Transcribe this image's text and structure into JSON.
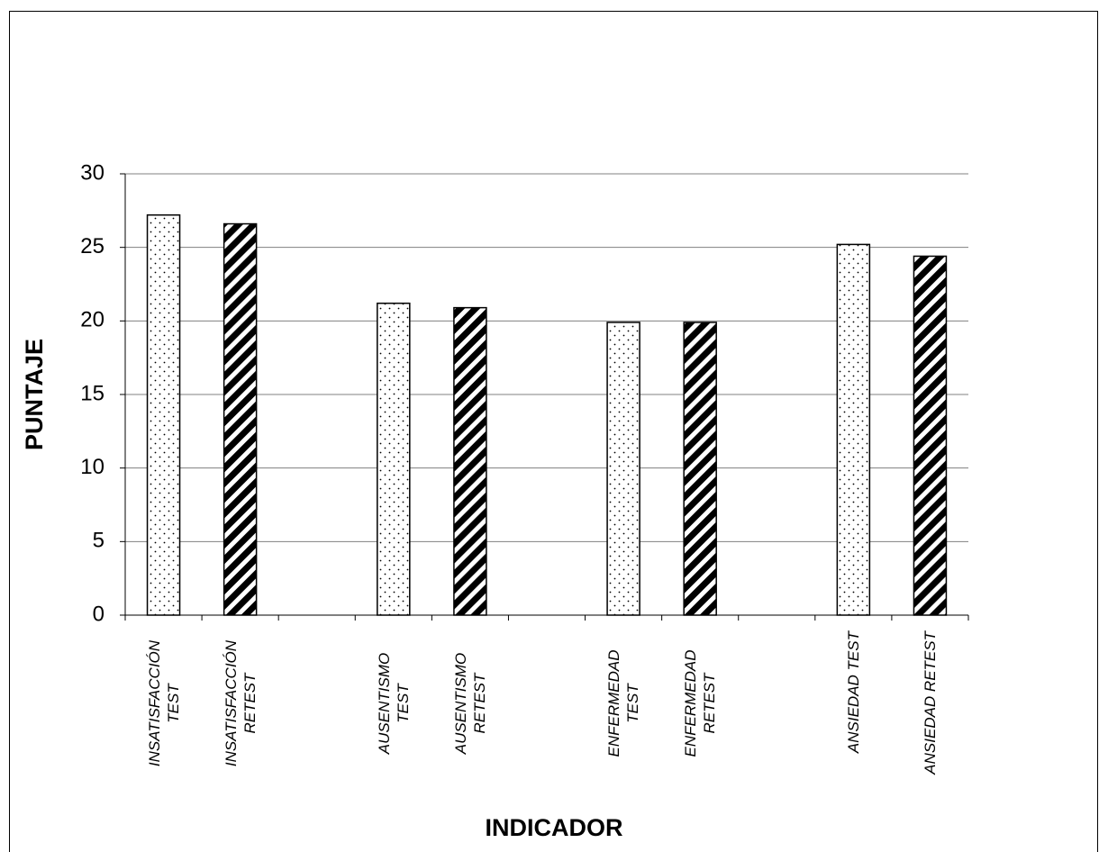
{
  "chart_data": {
    "type": "bar",
    "x_label": "INDICADOR",
    "y_label": "PUNTAJE",
    "categories": [
      "INSATISFACCIÓN TEST",
      "INSATISFACCIÓN RETEST",
      null,
      "AUSENTISMO TEST",
      "AUSENTISMO RETEST",
      null,
      "ENFERMEDAD TEST",
      "ENFERMEDAD RETEST",
      null,
      "ANSIEDAD TEST",
      "ANSIEDAD RETEST"
    ],
    "values": [
      27.2,
      26.6,
      null,
      21.2,
      20.9,
      null,
      19.9,
      19.9,
      null,
      25.2,
      24.4
    ],
    "patterns": [
      "dotted",
      "hatched",
      null,
      "dotted",
      "hatched",
      null,
      "dotted",
      "hatched",
      null,
      "dotted",
      "hatched"
    ],
    "ylim": [
      0,
      30
    ],
    "yticks": [
      0,
      5,
      10,
      15,
      20,
      25,
      30
    ],
    "grid": true
  }
}
